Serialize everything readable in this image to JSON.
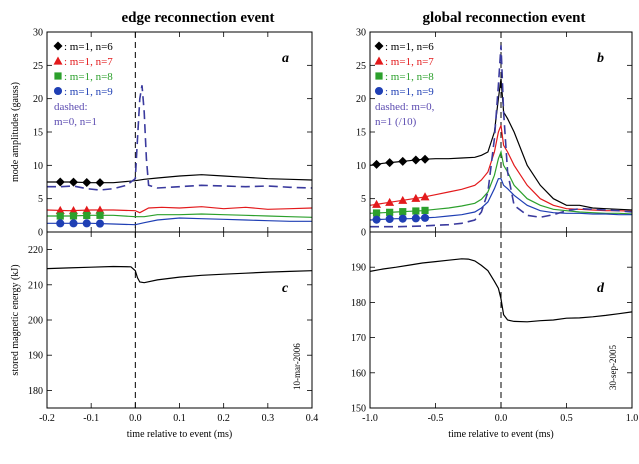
{
  "titles": {
    "left": "edge reconnection event",
    "right": "global reconnection event"
  },
  "stamps": {
    "left": "10-mar-2006",
    "right": "30-sep-2005"
  },
  "legend_left": [
    {
      "symbol": "diamond",
      "color": "#000000",
      "label": ": m=1, n=6"
    },
    {
      "symbol": "triangle",
      "color": "#e31a1c",
      "label": ": m=1, n=7"
    },
    {
      "symbol": "square",
      "color": "#2ca02c",
      "label": ": m=1, n=8"
    },
    {
      "symbol": "circle",
      "color": "#1f3fb4",
      "label": ": m=1, n=9"
    },
    {
      "symbol": "none",
      "color": "#5b4bb0",
      "label": "dashed:"
    },
    {
      "symbol": "none",
      "color": "#5b4bb0",
      "label": "m=0, n=1"
    }
  ],
  "legend_right": [
    {
      "symbol": "diamond",
      "color": "#000000",
      "label": ": m=1, n=6"
    },
    {
      "symbol": "triangle",
      "color": "#e31a1c",
      "label": ": m=1, n=7"
    },
    {
      "symbol": "square",
      "color": "#2ca02c",
      "label": ": m=1, n=8"
    },
    {
      "symbol": "circle",
      "color": "#1f3fb4",
      "label": ": m=1, n=9"
    },
    {
      "symbol": "none",
      "color": "#5b4bb0",
      "label": "dashed: m=0,"
    },
    {
      "symbol": "none",
      "color": "#5b4bb0",
      "label": "n=1 (/10)"
    }
  ],
  "chart_data": [
    {
      "panel": "a",
      "type": "line",
      "ylabel": "mode amplitudes (gauss)",
      "xlim": [
        -0.2,
        0.4
      ],
      "ylim": [
        0,
        30
      ],
      "xticks": [
        -0.2,
        -0.1,
        0,
        0.1,
        0.2,
        0.3,
        0.4
      ],
      "yticks": [
        0,
        5,
        10,
        15,
        20,
        25,
        30
      ],
      "show_xticklabels": false,
      "series": [
        {
          "color": "#000000",
          "dashed": false,
          "marker": "diamond",
          "markers_x": [
            -0.17,
            -0.14,
            -0.11,
            -0.08
          ],
          "x": [
            -0.2,
            -0.15,
            -0.1,
            -0.05,
            0,
            0.02,
            0.05,
            0.1,
            0.15,
            0.2,
            0.25,
            0.3,
            0.35,
            0.4
          ],
          "y": [
            7.5,
            7.5,
            7.4,
            7.4,
            7.7,
            7.9,
            8.1,
            8.4,
            8.6,
            8.4,
            8.2,
            8.0,
            7.9,
            7.8
          ]
        },
        {
          "color": "#e31a1c",
          "dashed": false,
          "marker": "triangle",
          "markers_x": [
            -0.17,
            -0.14,
            -0.11,
            -0.08
          ],
          "x": [
            -0.2,
            -0.15,
            -0.1,
            -0.05,
            0,
            0.01,
            0.03,
            0.06,
            0.1,
            0.15,
            0.2,
            0.25,
            0.3,
            0.35,
            0.4
          ],
          "y": [
            3.3,
            3.2,
            3.3,
            3.3,
            3.2,
            2.9,
            3.6,
            3.7,
            3.6,
            3.8,
            3.5,
            3.7,
            3.4,
            3.5,
            3.6
          ]
        },
        {
          "color": "#2ca02c",
          "dashed": false,
          "marker": "square",
          "markers_x": [
            -0.17,
            -0.14,
            -0.11,
            -0.08
          ],
          "x": [
            -0.2,
            -0.15,
            -0.1,
            -0.05,
            0,
            0.02,
            0.05,
            0.1,
            0.15,
            0.2,
            0.25,
            0.3,
            0.35,
            0.4
          ],
          "y": [
            2.4,
            2.4,
            2.5,
            2.5,
            2.3,
            2.3,
            2.6,
            2.6,
            2.7,
            2.6,
            2.5,
            2.4,
            2.3,
            2.2
          ]
        },
        {
          "color": "#1f3fb4",
          "dashed": false,
          "marker": "circle",
          "markers_x": [
            -0.17,
            -0.14,
            -0.11,
            -0.08
          ],
          "x": [
            -0.2,
            -0.15,
            -0.1,
            -0.05,
            0,
            0.02,
            0.05,
            0.1,
            0.15,
            0.2,
            0.25,
            0.3,
            0.35,
            0.4
          ],
          "y": [
            1.3,
            1.3,
            1.3,
            1.2,
            1.1,
            1.4,
            1.8,
            2.1,
            2.0,
            1.9,
            1.8,
            1.7,
            1.6,
            1.6
          ]
        },
        {
          "color": "#3a3a9e",
          "dashed": true,
          "marker": "none",
          "markers_x": [],
          "x": [
            -0.2,
            -0.17,
            -0.14,
            -0.11,
            -0.08,
            -0.05,
            -0.02,
            0,
            0.005,
            0.01,
            0.015,
            0.02,
            0.025,
            0.03,
            0.05,
            0.1,
            0.15,
            0.2,
            0.25,
            0.3,
            0.35,
            0.4
          ],
          "y": [
            6.8,
            6.8,
            6.9,
            6.5,
            6.3,
            6.5,
            7.0,
            8.0,
            14.0,
            20.0,
            22.0,
            18.0,
            11.0,
            7.0,
            6.6,
            6.8,
            7.0,
            6.9,
            6.8,
            6.9,
            6.7,
            6.6
          ]
        }
      ]
    },
    {
      "panel": "b",
      "type": "line",
      "ylabel": "",
      "xlim": [
        -1.0,
        1.0
      ],
      "ylim": [
        0,
        30
      ],
      "xticks": [
        -1.0,
        -0.5,
        0,
        0.5,
        1.0
      ],
      "yticks": [
        0,
        5,
        10,
        15,
        20,
        25,
        30
      ],
      "show_xticklabels": false,
      "series": [
        {
          "color": "#000000",
          "dashed": false,
          "marker": "diamond",
          "markers_x": [
            -0.95,
            -0.85,
            -0.75,
            -0.65,
            -0.58
          ],
          "x": [
            -1.0,
            -0.9,
            -0.8,
            -0.7,
            -0.6,
            -0.5,
            -0.4,
            -0.3,
            -0.2,
            -0.15,
            -0.1,
            -0.05,
            -0.02,
            0,
            0.02,
            0.05,
            0.1,
            0.2,
            0.3,
            0.4,
            0.5,
            0.6,
            0.7,
            0.8,
            0.9,
            1.0
          ],
          "y": [
            10.0,
            10.3,
            10.5,
            10.7,
            10.9,
            11.0,
            11.0,
            11.1,
            11.2,
            11.5,
            12.0,
            15.0,
            20.0,
            23.0,
            18.0,
            17.0,
            15.0,
            10.0,
            7.0,
            5.0,
            4.0,
            4.0,
            3.6,
            3.5,
            3.4,
            3.3
          ]
        },
        {
          "color": "#e31a1c",
          "dashed": false,
          "marker": "triangle",
          "markers_x": [
            -0.95,
            -0.85,
            -0.75,
            -0.65,
            -0.58
          ],
          "x": [
            -1.0,
            -0.9,
            -0.8,
            -0.7,
            -0.6,
            -0.5,
            -0.4,
            -0.3,
            -0.2,
            -0.15,
            -0.1,
            -0.05,
            -0.02,
            0,
            0.02,
            0.05,
            0.1,
            0.2,
            0.3,
            0.4,
            0.5,
            0.6,
            0.7,
            0.8,
            0.9,
            1.0
          ],
          "y": [
            4.0,
            4.3,
            4.6,
            4.9,
            5.2,
            5.6,
            6.0,
            6.4,
            7.0,
            7.8,
            9.0,
            12.0,
            15.0,
            16.0,
            13.0,
            12.0,
            10.0,
            7.0,
            5.0,
            4.0,
            3.5,
            3.4,
            3.3,
            3.2,
            3.2,
            3.1
          ]
        },
        {
          "color": "#2ca02c",
          "dashed": false,
          "marker": "square",
          "markers_x": [
            -0.95,
            -0.85,
            -0.75,
            -0.65,
            -0.58
          ],
          "x": [
            -1.0,
            -0.9,
            -0.8,
            -0.7,
            -0.6,
            -0.5,
            -0.4,
            -0.3,
            -0.2,
            -0.15,
            -0.1,
            -0.05,
            -0.02,
            0,
            0.02,
            0.05,
            0.1,
            0.2,
            0.3,
            0.4,
            0.5,
            0.6,
            0.7,
            0.8,
            0.9,
            1.0
          ],
          "y": [
            2.8,
            2.9,
            3.0,
            3.1,
            3.2,
            3.4,
            3.6,
            3.9,
            4.3,
            4.9,
            6.0,
            8.5,
            11.0,
            12.0,
            10.0,
            9.0,
            7.0,
            5.0,
            4.0,
            3.4,
            3.2,
            3.0,
            2.9,
            2.8,
            2.8,
            2.7
          ]
        },
        {
          "color": "#1f3fb4",
          "dashed": false,
          "marker": "circle",
          "markers_x": [
            -0.95,
            -0.85,
            -0.75,
            -0.65,
            -0.58
          ],
          "x": [
            -1.0,
            -0.9,
            -0.8,
            -0.7,
            -0.6,
            -0.5,
            -0.4,
            -0.3,
            -0.2,
            -0.15,
            -0.1,
            -0.05,
            -0.02,
            0,
            0.02,
            0.05,
            0.1,
            0.2,
            0.3,
            0.4,
            0.5,
            0.6,
            0.7,
            0.8,
            0.9,
            1.0
          ],
          "y": [
            1.8,
            1.9,
            2.0,
            2.0,
            2.1,
            2.2,
            2.4,
            2.6,
            3.0,
            3.6,
            4.5,
            6.5,
            8.0,
            8.0,
            7.0,
            6.5,
            5.5,
            4.0,
            3.2,
            2.9,
            2.8,
            2.8,
            2.7,
            2.7,
            2.6,
            2.6
          ]
        },
        {
          "color": "#3a3a9e",
          "dashed": true,
          "marker": "none",
          "markers_x": [],
          "x": [
            -1.0,
            -0.8,
            -0.6,
            -0.5,
            -0.4,
            -0.3,
            -0.2,
            -0.15,
            -0.1,
            -0.05,
            -0.02,
            0,
            0.02,
            0.05,
            0.1,
            0.2,
            0.3,
            0.4,
            0.5,
            0.6,
            0.7,
            0.8,
            0.9,
            1.0
          ],
          "y": [
            0.8,
            0.8,
            0.9,
            1.0,
            1.1,
            1.3,
            1.8,
            3.0,
            6.0,
            14.0,
            22.0,
            28.0,
            18.0,
            9.0,
            4.0,
            2.5,
            2.2,
            2.6,
            3.2,
            3.5,
            3.4,
            3.3,
            3.2,
            3.0
          ]
        }
      ]
    },
    {
      "panel": "c",
      "type": "line",
      "xlabel": "time relative to event (ms)",
      "ylabel": "stored magnetic energy (kJ)",
      "xlim": [
        -0.2,
        0.4
      ],
      "ylim": [
        175,
        225
      ],
      "xticks": [
        -0.2,
        -0.1,
        0,
        0.1,
        0.2,
        0.3,
        0.4
      ],
      "xticklabels": [
        "-0.2",
        "-0.1",
        "0.0",
        "0.1",
        "0.2",
        "0.3",
        "0.4"
      ],
      "yticks": [
        180,
        190,
        200,
        210,
        220
      ],
      "yticklabels": [
        "180",
        "190",
        "200",
        "210",
        "220"
      ],
      "show_xticklabels": true,
      "series": [
        {
          "color": "#000000",
          "dashed": false,
          "marker": "none",
          "markers_x": [],
          "x": [
            -0.2,
            -0.15,
            -0.1,
            -0.05,
            -0.01,
            0,
            0.005,
            0.01,
            0.02,
            0.05,
            0.1,
            0.15,
            0.2,
            0.25,
            0.3,
            0.35,
            0.4
          ],
          "y": [
            214.6,
            214.8,
            215.0,
            215.2,
            215.1,
            214.0,
            212.0,
            210.8,
            210.6,
            211.4,
            212.2,
            212.7,
            213.0,
            213.3,
            213.6,
            213.8,
            214.0
          ]
        }
      ]
    },
    {
      "panel": "d",
      "type": "line",
      "xlabel": "time relative to event (ms)",
      "ylabel": "",
      "xlim": [
        -1.0,
        1.0
      ],
      "ylim": [
        150,
        200
      ],
      "xticks": [
        -1.0,
        -0.5,
        0,
        0.5,
        1.0
      ],
      "xticklabels": [
        "-1.0",
        "-0.5",
        "0.0",
        "0.5",
        "1.0"
      ],
      "yticks": [
        150,
        160,
        170,
        180,
        190
      ],
      "yticklabels": [
        "150",
        "160",
        "170",
        "180",
        "190"
      ],
      "show_xticklabels": true,
      "series": [
        {
          "color": "#000000",
          "dashed": false,
          "marker": "none",
          "markers_x": [],
          "x": [
            -1.0,
            -0.9,
            -0.8,
            -0.7,
            -0.6,
            -0.5,
            -0.4,
            -0.3,
            -0.25,
            -0.2,
            -0.15,
            -0.1,
            -0.05,
            -0.02,
            0,
            0.02,
            0.05,
            0.1,
            0.2,
            0.3,
            0.4,
            0.5,
            0.6,
            0.7,
            0.8,
            0.9,
            1.0
          ],
          "y": [
            188.8,
            189.5,
            190.0,
            190.6,
            191.2,
            191.6,
            192.0,
            192.4,
            192.3,
            191.8,
            190.5,
            189.0,
            186.0,
            184.0,
            181.0,
            176.5,
            175.0,
            174.6,
            174.5,
            174.8,
            175.0,
            175.5,
            175.6,
            175.9,
            176.3,
            176.8,
            177.3
          ]
        }
      ]
    }
  ]
}
